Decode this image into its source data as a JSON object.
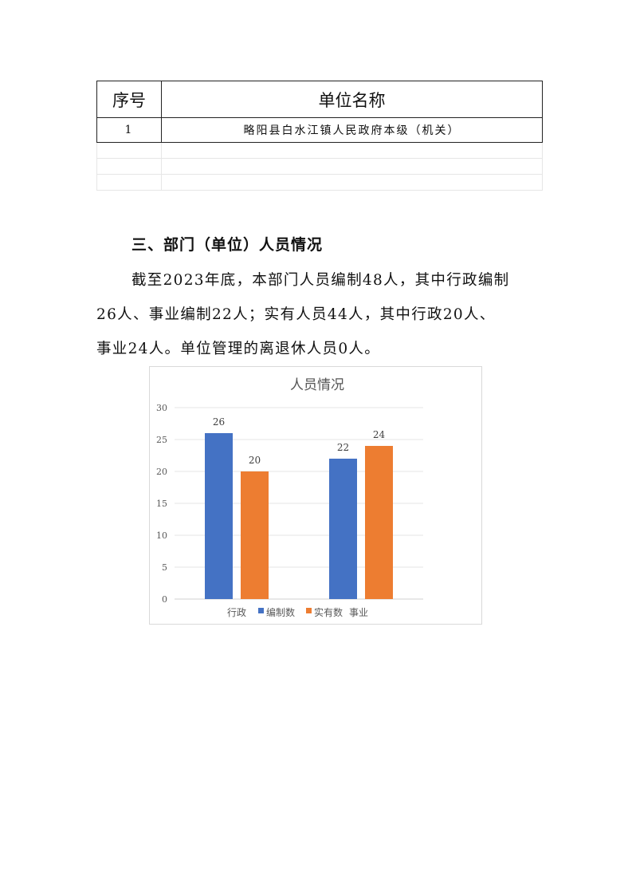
{
  "table": {
    "headers": [
      "序号",
      "单位名称"
    ],
    "rows": [
      [
        "1",
        "略阳县白水江镇人民政府本级（机关）"
      ]
    ],
    "empty_rows": 3
  },
  "section": {
    "heading": "三、部门（单位）人员情况",
    "lines": [
      "截至2023年底，本部门人员编制48人，其中行政编制",
      "26人、事业编制22人；实有人员44人，其中行政20人、",
      "事业24人。单位管理的离退休人员0人。"
    ]
  },
  "chart_data": {
    "type": "bar",
    "title": "人员情况",
    "categories": [
      "行政",
      "事业"
    ],
    "series": [
      {
        "name": "编制数",
        "values": [
          26,
          22
        ],
        "color": "#4472C4"
      },
      {
        "name": "实有数",
        "values": [
          20,
          24
        ],
        "color": "#ED7D31"
      }
    ],
    "ylim": [
      0,
      30
    ],
    "yticks": [
      0,
      5,
      10,
      15,
      20,
      25,
      30
    ],
    "grid": true,
    "legend": "bottom",
    "data_labels": true
  }
}
